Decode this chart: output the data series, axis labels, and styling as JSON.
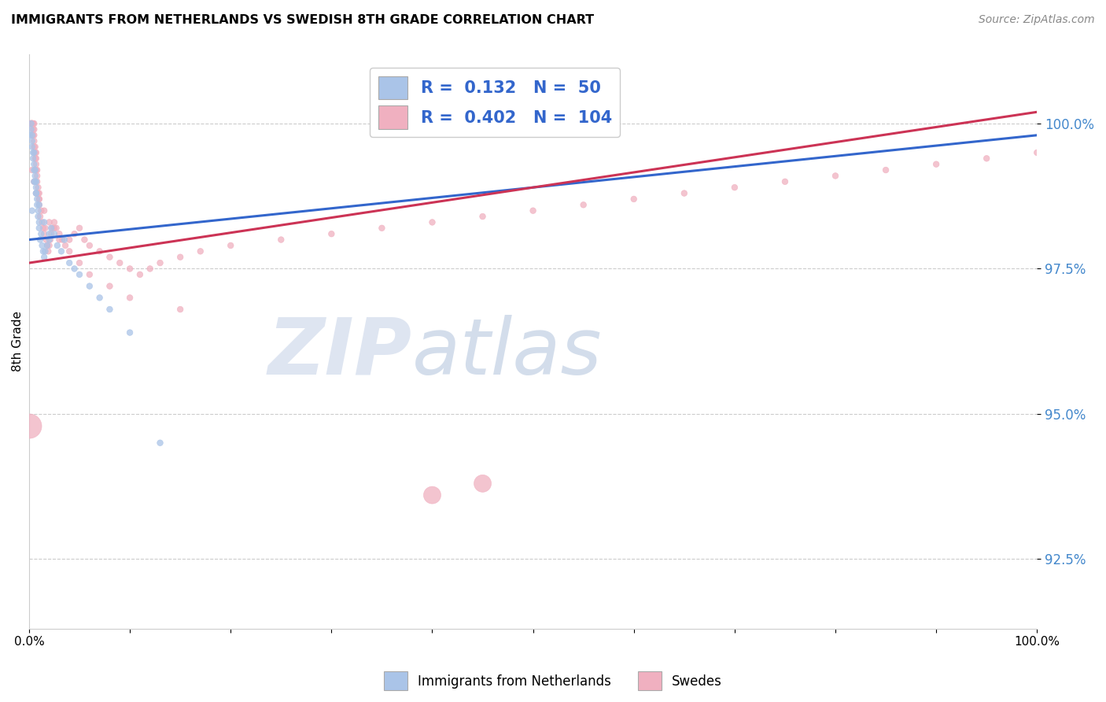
{
  "title": "IMMIGRANTS FROM NETHERLANDS VS SWEDISH 8TH GRADE CORRELATION CHART",
  "source": "Source: ZipAtlas.com",
  "ylabel": "8th Grade",
  "yticks": [
    92.5,
    95.0,
    97.5,
    100.0
  ],
  "ytick_labels": [
    "92.5%",
    "95.0%",
    "97.5%",
    "100.0%"
  ],
  "xmin": 0.0,
  "xmax": 1.0,
  "ymin": 91.3,
  "ymax": 101.2,
  "legend_blue_label": "Immigrants from Netherlands",
  "legend_pink_label": "Swedes",
  "blue_R": 0.132,
  "blue_N": 50,
  "pink_R": 0.402,
  "pink_N": 104,
  "blue_color": "#aac4e8",
  "pink_color": "#f0b0c0",
  "blue_line_color": "#3366cc",
  "pink_line_color": "#cc3355",
  "watermark_zip": "ZIP",
  "watermark_atlas": "atlas",
  "blue_line_x": [
    0.0,
    1.0
  ],
  "blue_line_y": [
    98.0,
    99.8
  ],
  "pink_line_x": [
    0.0,
    1.0
  ],
  "pink_line_y": [
    97.6,
    100.2
  ],
  "blue_scatter_x": [
    0.001,
    0.002,
    0.002,
    0.003,
    0.003,
    0.003,
    0.004,
    0.004,
    0.005,
    0.005,
    0.005,
    0.006,
    0.006,
    0.006,
    0.007,
    0.007,
    0.007,
    0.008,
    0.008,
    0.009,
    0.009,
    0.01,
    0.01,
    0.011,
    0.012,
    0.013,
    0.014,
    0.015,
    0.016,
    0.018,
    0.02,
    0.022,
    0.025,
    0.028,
    0.032,
    0.035,
    0.04,
    0.045,
    0.05,
    0.06,
    0.07,
    0.08,
    0.1,
    0.13,
    0.003,
    0.005,
    0.007,
    0.01,
    0.015,
    0.02
  ],
  "blue_scatter_y": [
    99.8,
    99.9,
    100.0,
    99.6,
    99.7,
    99.8,
    99.4,
    99.5,
    99.2,
    99.3,
    99.5,
    99.0,
    99.1,
    99.2,
    98.8,
    98.9,
    99.0,
    98.6,
    98.7,
    98.4,
    98.5,
    98.2,
    98.3,
    98.0,
    98.1,
    97.9,
    97.8,
    97.7,
    97.8,
    97.9,
    98.0,
    98.2,
    98.1,
    97.9,
    97.8,
    98.0,
    97.6,
    97.5,
    97.4,
    97.2,
    97.0,
    96.8,
    96.4,
    94.5,
    98.5,
    99.0,
    98.8,
    98.6,
    98.3,
    98.1
  ],
  "blue_scatter_sizes": [
    30,
    30,
    30,
    30,
    30,
    30,
    30,
    30,
    30,
    30,
    30,
    30,
    30,
    30,
    30,
    30,
    30,
    30,
    30,
    30,
    30,
    30,
    30,
    30,
    30,
    30,
    30,
    30,
    30,
    30,
    30,
    30,
    30,
    30,
    30,
    30,
    30,
    30,
    30,
    30,
    30,
    30,
    30,
    30,
    30,
    30,
    30,
    30,
    30,
    30
  ],
  "pink_scatter_x": [
    0.001,
    0.001,
    0.002,
    0.002,
    0.002,
    0.002,
    0.003,
    0.003,
    0.003,
    0.003,
    0.003,
    0.003,
    0.003,
    0.003,
    0.003,
    0.004,
    0.004,
    0.004,
    0.004,
    0.005,
    0.005,
    0.005,
    0.005,
    0.005,
    0.006,
    0.006,
    0.006,
    0.007,
    0.007,
    0.007,
    0.007,
    0.008,
    0.008,
    0.008,
    0.009,
    0.009,
    0.01,
    0.01,
    0.01,
    0.011,
    0.012,
    0.013,
    0.014,
    0.015,
    0.016,
    0.017,
    0.018,
    0.019,
    0.02,
    0.021,
    0.022,
    0.023,
    0.025,
    0.027,
    0.03,
    0.033,
    0.036,
    0.04,
    0.045,
    0.05,
    0.055,
    0.06,
    0.07,
    0.08,
    0.09,
    0.1,
    0.11,
    0.12,
    0.13,
    0.15,
    0.17,
    0.2,
    0.25,
    0.3,
    0.35,
    0.4,
    0.45,
    0.5,
    0.55,
    0.6,
    0.65,
    0.7,
    0.75,
    0.8,
    0.85,
    0.9,
    0.95,
    1.0,
    0.003,
    0.005,
    0.007,
    0.01,
    0.015,
    0.02,
    0.025,
    0.03,
    0.04,
    0.05,
    0.06,
    0.08,
    0.1,
    0.15,
    0.4,
    0.45
  ],
  "pink_scatter_y": [
    100.0,
    100.0,
    100.0,
    100.0,
    100.0,
    100.0,
    100.0,
    100.0,
    100.0,
    100.0,
    100.0,
    100.0,
    100.0,
    100.0,
    100.0,
    99.8,
    99.9,
    100.0,
    100.0,
    99.6,
    99.7,
    99.8,
    99.9,
    100.0,
    99.4,
    99.5,
    99.6,
    99.2,
    99.3,
    99.4,
    99.5,
    99.0,
    99.1,
    99.2,
    98.8,
    98.9,
    98.6,
    98.7,
    98.8,
    98.4,
    98.5,
    98.3,
    98.2,
    98.1,
    98.2,
    98.0,
    97.9,
    97.8,
    97.9,
    98.0,
    98.1,
    98.2,
    98.3,
    98.2,
    98.1,
    98.0,
    97.9,
    98.0,
    98.1,
    98.2,
    98.0,
    97.9,
    97.8,
    97.7,
    97.6,
    97.5,
    97.4,
    97.5,
    97.6,
    97.7,
    97.8,
    97.9,
    98.0,
    98.1,
    98.2,
    98.3,
    98.4,
    98.5,
    98.6,
    98.7,
    98.8,
    98.9,
    99.0,
    99.1,
    99.2,
    99.3,
    99.4,
    99.5,
    99.2,
    99.0,
    98.8,
    98.7,
    98.5,
    98.3,
    98.2,
    98.0,
    97.8,
    97.6,
    97.4,
    97.2,
    97.0,
    96.8,
    93.6,
    93.8
  ],
  "pink_scatter_sizes": [
    30,
    30,
    30,
    30,
    30,
    30,
    30,
    30,
    30,
    30,
    30,
    30,
    30,
    30,
    30,
    30,
    30,
    30,
    30,
    30,
    30,
    30,
    30,
    30,
    30,
    30,
    30,
    30,
    30,
    30,
    30,
    30,
    30,
    30,
    30,
    30,
    30,
    30,
    30,
    30,
    30,
    30,
    30,
    30,
    30,
    30,
    30,
    30,
    30,
    30,
    30,
    30,
    30,
    30,
    30,
    30,
    30,
    30,
    30,
    30,
    30,
    30,
    30,
    30,
    30,
    30,
    30,
    30,
    30,
    30,
    30,
    30,
    30,
    30,
    30,
    30,
    30,
    30,
    30,
    30,
    30,
    30,
    30,
    30,
    30,
    30,
    30,
    30,
    30,
    30,
    30,
    30,
    30,
    30,
    30,
    30,
    30,
    30,
    30,
    30,
    30,
    30,
    250,
    250
  ],
  "pink_large_x": [
    0.0
  ],
  "pink_large_y": [
    94.8
  ],
  "pink_large_size": [
    500
  ]
}
